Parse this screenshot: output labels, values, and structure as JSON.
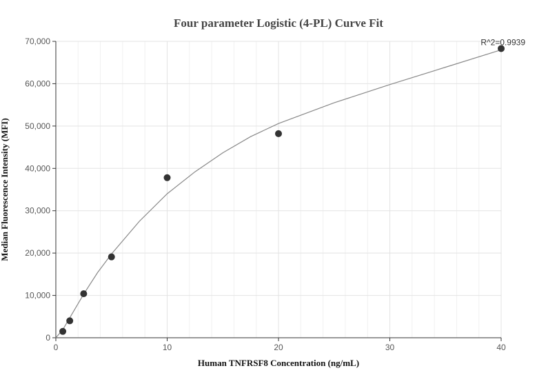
{
  "chart_data": {
    "type": "scatter",
    "title": "Four parameter Logistic (4-PL) Curve Fit",
    "xlabel": "Human TNFRSF8 Concentration (ng/mL)",
    "ylabel": "Median Fluorescence Intensity (MFI)",
    "xlim": [
      0,
      40
    ],
    "ylim": [
      0,
      70000
    ],
    "x_ticks": [
      0,
      10,
      20,
      30,
      40
    ],
    "x_tick_labels": [
      "0",
      "10",
      "20",
      "30",
      "40"
    ],
    "y_ticks": [
      0,
      10000,
      20000,
      30000,
      40000,
      50000,
      60000,
      70000
    ],
    "y_tick_labels": [
      "0",
      "10,000",
      "20,000",
      "30,000",
      "40,000",
      "50,000",
      "60,000",
      "70,000"
    ],
    "grid": true,
    "series": [
      {
        "type": "scatter",
        "x": [
          0.625,
          1.25,
          2.5,
          5,
          10,
          20,
          40
        ],
        "y": [
          1500,
          4000,
          10400,
          19100,
          37800,
          48200,
          68300
        ],
        "color": "#333333"
      },
      {
        "type": "line",
        "x": [
          0,
          0.625,
          1.25,
          2.5,
          3.75,
          5,
          7.5,
          10,
          12.5,
          15,
          17.5,
          20,
          25,
          30,
          35,
          40
        ],
        "y": [
          0,
          1900,
          4700,
          10300,
          15400,
          19800,
          27500,
          34000,
          39200,
          43700,
          47500,
          50600,
          55500,
          59800,
          63900,
          68000
        ],
        "color": "#888888"
      }
    ],
    "annotations": [
      {
        "text": "R^2=0.9939",
        "x": 40,
        "y": 68300
      }
    ]
  }
}
